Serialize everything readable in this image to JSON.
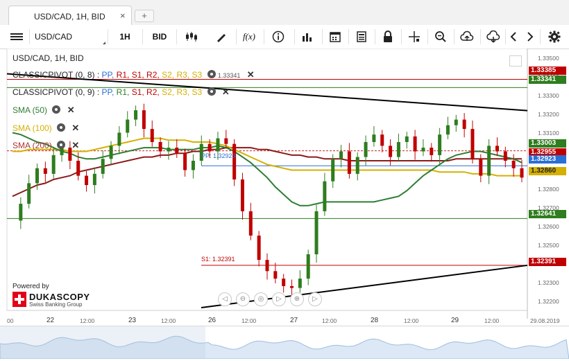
{
  "tab": {
    "title": "USD/CAD, 1H, BID",
    "close": "×",
    "add": "+"
  },
  "toolbar": {
    "symbol": "USD/CAD",
    "period": "1H",
    "side": "BID",
    "fx_label": "f(x)"
  },
  "legend": {
    "header": "USD/CAD, 1H, BID",
    "pivot1_name": "CLASSICPIVOT (0, 8)",
    "pivot2_name": "CLASSICPIVOT (0, 9)",
    "pivot_sep": ":",
    "pivot_pp": "PP,",
    "pivot_r1": "R1,",
    "pivot_s1": "S1,",
    "pivot_r2": "R2,",
    "pivot_s2": "S2,",
    "pivot_r3": "R3,",
    "pivot_s3": "S3",
    "sma50": "SMA (50)",
    "sma100": "SMA (100)",
    "sma200": "SMA (200)"
  },
  "annotations": {
    "pp_label": "PP: 1.32923",
    "s1_label": "S1: 1.32391",
    "r1_partial": "1.33341"
  },
  "price_tags": [
    {
      "value": "1.33385",
      "color": "#c00000"
    },
    {
      "value": "1.33341",
      "color": "#2e7d1e"
    },
    {
      "value": "1.33003",
      "color": "#2e7d1e"
    },
    {
      "value": "1.32955",
      "color": "#c00000"
    },
    {
      "value": "1.32923",
      "color": "#2a6fd6"
    },
    {
      "value": "1.32860",
      "color": "#d4b000"
    },
    {
      "value": "1.32641",
      "color": "#2e7d1e"
    },
    {
      "value": "1.32391",
      "color": "#c00000"
    }
  ],
  "y_axis_labels": [
    "1.33500",
    "1.33400",
    "1.33300",
    "1.33200",
    "1.33100",
    "1.33000",
    "1.32900",
    "1.32800",
    "1.32700",
    "1.32600",
    "1.32500",
    "1.32400",
    "1.32300",
    "1.32200"
  ],
  "x_axis_labels": [
    "00",
    "22",
    "12:00",
    "23",
    "12:00",
    "26",
    "12:00",
    "27",
    "12:00",
    "28",
    "12:00",
    "29",
    "12:00",
    "29.08.2019"
  ],
  "powered_by": "Powered by",
  "brand": "DUKASCOPY",
  "brand_sub": "Swiss Banking Group",
  "colors": {
    "up": "#2e7d1e",
    "down": "#c00000",
    "sma50": "#2e7d32",
    "sma100": "#d4b000",
    "sma200": "#8b1a1a",
    "pp": "#2a6fd6"
  },
  "chart_data": {
    "type": "candlestick",
    "ylim": [
      1.3215,
      1.3355
    ],
    "levels": {
      "r1_prev": 1.33385,
      "r1": 1.33341,
      "pp": 1.32923,
      "s1": 1.32391,
      "support": 1.32641
    },
    "close": [
      1.3263,
      1.3272,
      1.3283,
      1.3291,
      1.3288,
      1.3298,
      1.3302,
      1.3295,
      1.3287,
      1.3282,
      1.3288,
      1.3296,
      1.3303,
      1.331,
      1.3317,
      1.3322,
      1.3312,
      1.3305,
      1.33,
      1.3302,
      1.3299,
      1.329,
      1.3295,
      1.3304,
      1.33,
      1.3307,
      1.3304,
      1.3285,
      1.3268,
      1.3255,
      1.3242,
      1.3236,
      1.3232,
      1.3228,
      1.3227,
      1.3232,
      1.3245,
      1.3268,
      1.3284,
      1.3296,
      1.33,
      1.3288,
      1.3297,
      1.3305,
      1.3309,
      1.3303,
      1.3297,
      1.3305,
      1.3308,
      1.33,
      1.3302,
      1.3298,
      1.3309,
      1.3314,
      1.3317,
      1.3312,
      1.3296,
      1.3287,
      1.3303,
      1.33,
      1.3295,
      1.3291,
      1.3286
    ],
    "sma50": [
      1.331,
      1.3309,
      1.3307,
      1.3305,
      1.3304,
      1.3302,
      1.33,
      1.3299,
      1.3297,
      1.3296,
      1.3296,
      1.3297,
      1.3298,
      1.3299,
      1.33,
      1.3301,
      1.3302,
      1.3302,
      1.3302,
      1.3301,
      1.3301,
      1.3301,
      1.3301,
      1.3302,
      1.3302,
      1.3303,
      1.3302,
      1.33,
      1.3297,
      1.3294,
      1.329,
      1.3286,
      1.3281,
      1.3277,
      1.3273,
      1.3271,
      1.3271,
      1.3272,
      1.3273,
      1.3273,
      1.3273,
      1.3273,
      1.3273,
      1.3273,
      1.3273,
      1.3274,
      1.3275,
      1.3276,
      1.3279,
      1.3283,
      1.3287,
      1.329,
      1.3293,
      1.3296,
      1.3298,
      1.3299,
      1.33,
      1.33,
      1.3299,
      1.3298,
      1.3297,
      1.3296,
      1.3294
    ],
    "sma100": [
      1.33,
      1.33,
      1.3301,
      1.3301,
      1.3301,
      1.3301,
      1.3301,
      1.33,
      1.33,
      1.33,
      1.3301,
      1.3302,
      1.3303,
      1.3304,
      1.3305,
      1.3306,
      1.3307,
      1.3307,
      1.3307,
      1.3306,
      1.3306,
      1.3306,
      1.3305,
      1.3305,
      1.3305,
      1.3304,
      1.3303,
      1.3301,
      1.3299,
      1.3297,
      1.3295,
      1.3293,
      1.3292,
      1.3291,
      1.329,
      1.329,
      1.329,
      1.329,
      1.329,
      1.329,
      1.329,
      1.329,
      1.329,
      1.329,
      1.329,
      1.329,
      1.329,
      1.329,
      1.329,
      1.329,
      1.329,
      1.329,
      1.3289,
      1.3289,
      1.3289,
      1.3289,
      1.3288,
      1.3288,
      1.3288,
      1.3287,
      1.3287,
      1.3287,
      1.3287
    ],
    "sma200": [
      1.3276,
      1.3278,
      1.328,
      1.3282,
      1.3283,
      1.3285,
      1.3286,
      1.3287,
      1.3289,
      1.329,
      1.3291,
      1.3292,
      1.3293,
      1.3294,
      1.3295,
      1.3296,
      1.3297,
      1.3297,
      1.3298,
      1.3298,
      1.3299,
      1.3299,
      1.33,
      1.33,
      1.3301,
      1.3301,
      1.3302,
      1.3302,
      1.3302,
      1.3302,
      1.3301,
      1.3301,
      1.33,
      1.3299,
      1.3298,
      1.3298,
      1.3297,
      1.3297,
      1.3296,
      1.3296,
      1.3296,
      1.3295,
      1.3295,
      1.3295,
      1.3295,
      1.3295,
      1.3295,
      1.3295,
      1.3295,
      1.3295,
      1.3295,
      1.3295,
      1.3295,
      1.3295,
      1.3296,
      1.3296,
      1.3296,
      1.3296,
      1.3296,
      1.3296,
      1.3296,
      1.3296,
      1.3296
    ]
  }
}
